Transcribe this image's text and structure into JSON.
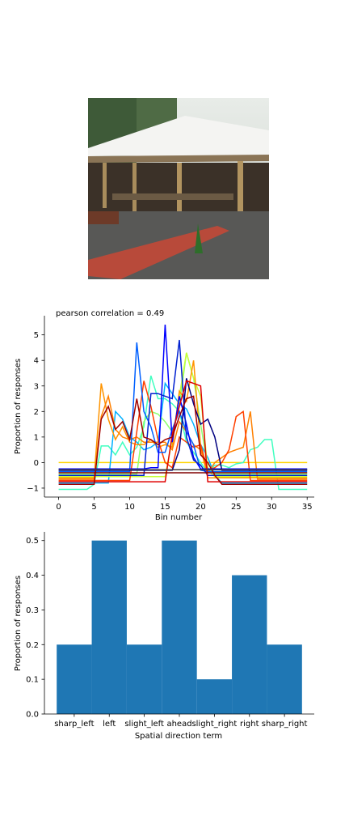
{
  "image": {
    "subject": "outdoor pavilion with picnic tables, brick path and small shrub"
  },
  "chart_data": [
    {
      "type": "line",
      "title": "pearson correlation = 0.49",
      "xlabel": "Bin number",
      "ylabel": "Proportion of responses",
      "xlim": [
        -2,
        36
      ],
      "ylim": [
        -1.35,
        5.75
      ],
      "xticks": [
        0,
        5,
        10,
        15,
        20,
        25,
        30,
        35
      ],
      "yticks": [
        -1,
        0,
        1,
        2,
        3,
        4,
        5
      ],
      "grid": false,
      "x": [
        0,
        1,
        2,
        3,
        4,
        5,
        6,
        7,
        8,
        9,
        10,
        11,
        12,
        13,
        14,
        15,
        16,
        17,
        18,
        19,
        20,
        21,
        22,
        23,
        24,
        25,
        26,
        27,
        28,
        29,
        30,
        31,
        32,
        33,
        34,
        35
      ],
      "series": [
        {
          "color": "#ffd400",
          "values": [
            0,
            0,
            0,
            0,
            0,
            0,
            0,
            0,
            0,
            0,
            0,
            0,
            0,
            0,
            0,
            0,
            0,
            0,
            0,
            0,
            0,
            0,
            0,
            0,
            0,
            0,
            0,
            0,
            0,
            0,
            0,
            0,
            0,
            0,
            0,
            0
          ]
        },
        {
          "color": "#40ffc0",
          "values": [
            -1.05,
            -1.05,
            -1.05,
            -1.05,
            -1.05,
            -0.85,
            0.65,
            0.65,
            0.3,
            0.8,
            0.3,
            0.6,
            1.4,
            3.4,
            2.5,
            2.5,
            2.3,
            2.0,
            0.8,
            0.4,
            0.0,
            -0.4,
            -0.1,
            -0.1,
            -0.2,
            -0.05,
            0.0,
            0.5,
            0.6,
            0.9,
            0.9,
            -1.05,
            -1.05,
            -1.05,
            -1.05,
            -1.05
          ]
        },
        {
          "color": "#00b0ff",
          "values": [
            -0.8,
            -0.8,
            -0.8,
            -0.8,
            -0.8,
            -0.8,
            -0.8,
            -0.8,
            2.0,
            1.7,
            1.0,
            0.8,
            0.5,
            0.6,
            0.8,
            3.1,
            2.7,
            2.3,
            2.1,
            1.5,
            0.7,
            0.2,
            -0.5,
            -0.8,
            -0.8,
            -0.8,
            -0.8,
            -0.8,
            -0.8,
            -0.8,
            -0.8,
            -0.8,
            -0.8,
            -0.8,
            -0.8,
            -0.8
          ]
        },
        {
          "color": "#8cff70",
          "values": [
            -0.45,
            -0.45,
            -0.45,
            -0.45,
            -0.45,
            -0.45,
            -0.45,
            -0.45,
            -0.45,
            -0.45,
            -0.45,
            -0.45,
            1.6,
            2.0,
            1.9,
            1.6,
            1.2,
            2.2,
            4.3,
            3.3,
            1.5,
            -0.2,
            -0.45,
            -0.45,
            -0.45,
            -0.45,
            -0.45,
            -0.45,
            -0.45,
            -0.45,
            -0.45,
            -0.45,
            -0.45,
            -0.45,
            -0.45,
            -0.45
          ]
        },
        {
          "color": "#c8ff38",
          "values": [
            -0.55,
            -0.55,
            -0.55,
            -0.55,
            -0.55,
            -0.55,
            -0.55,
            -0.55,
            -0.55,
            -0.55,
            -0.55,
            -0.55,
            -0.55,
            -0.55,
            -0.55,
            -0.55,
            0.9,
            2.6,
            4.3,
            3.3,
            2.6,
            -0.3,
            -0.55,
            -0.55,
            -0.55,
            -0.55,
            -0.55,
            -0.55,
            -0.55,
            -0.55,
            -0.55,
            -0.55,
            -0.55,
            -0.55,
            -0.55,
            -0.55
          ]
        },
        {
          "color": "#ff9400",
          "values": [
            -0.6,
            -0.6,
            -0.6,
            -0.6,
            -0.6,
            -0.6,
            3.1,
            1.7,
            0.9,
            1.4,
            0.8,
            0.7,
            0.7,
            0.9,
            0.6,
            0.7,
            0.6,
            2.8,
            2.4,
            4.0,
            0.6,
            -0.6,
            -0.6,
            -0.6,
            -0.6,
            -0.6,
            -0.6,
            -0.6,
            -0.6,
            -0.6,
            -0.6,
            -0.6,
            -0.6,
            -0.6,
            -0.6,
            -0.6
          ]
        },
        {
          "color": "#ff8000",
          "values": [
            -0.65,
            -0.65,
            -0.65,
            -0.65,
            -0.65,
            -0.65,
            1.8,
            2.6,
            1.3,
            1.0,
            0.9,
            1.0,
            0.8,
            0.8,
            0.8,
            0.8,
            0.5,
            1.6,
            1.2,
            0.7,
            0.5,
            -0.4,
            0.0,
            0.2,
            0.4,
            0.5,
            0.6,
            2.0,
            -0.65,
            -0.65,
            -0.65,
            -0.65,
            -0.65,
            -0.65,
            -0.65,
            -0.65
          ]
        },
        {
          "color": "#ff4000",
          "values": [
            -0.7,
            -0.7,
            -0.7,
            -0.7,
            -0.7,
            -0.7,
            -0.7,
            -0.7,
            -0.7,
            -0.7,
            -0.7,
            1.2,
            3.2,
            2.2,
            0.9,
            0.0,
            -0.2,
            1.0,
            0.8,
            0.6,
            0.7,
            -0.3,
            -0.2,
            0.0,
            0.5,
            1.8,
            2.0,
            -0.7,
            -0.7,
            -0.7,
            -0.7,
            -0.7,
            -0.7,
            -0.7,
            -0.7,
            -0.7
          ]
        },
        {
          "color": "#0060ff",
          "values": [
            -0.35,
            -0.35,
            -0.35,
            -0.35,
            -0.35,
            -0.35,
            -0.35,
            -0.35,
            -0.35,
            -0.35,
            -0.35,
            4.7,
            2.0,
            1.4,
            0.4,
            0.4,
            1.3,
            2.0,
            1.2,
            0.7,
            -0.3,
            -0.35,
            -0.35,
            -0.35,
            -0.35,
            -0.35,
            -0.35,
            -0.35,
            -0.35,
            -0.35,
            -0.35,
            -0.35,
            -0.35,
            -0.35,
            -0.35,
            -0.35
          ]
        },
        {
          "color": "#0000ff",
          "values": [
            -0.25,
            -0.25,
            -0.25,
            -0.25,
            -0.25,
            -0.25,
            -0.25,
            -0.25,
            -0.25,
            -0.25,
            -0.25,
            -0.25,
            -0.25,
            -0.2,
            -0.2,
            5.4,
            0.8,
            2.6,
            1.5,
            0.2,
            -0.25,
            -0.25,
            -0.25,
            -0.25,
            -0.25,
            -0.25,
            -0.25,
            -0.25,
            -0.25,
            -0.25,
            -0.25,
            -0.25,
            -0.25,
            -0.25,
            -0.25,
            -0.25
          ]
        },
        {
          "color": "#0020d0",
          "values": [
            -0.5,
            -0.5,
            -0.5,
            -0.5,
            -0.5,
            -0.5,
            -0.5,
            -0.5,
            -0.5,
            -0.5,
            -0.5,
            -0.5,
            -0.5,
            2.7,
            2.7,
            2.6,
            2.5,
            4.8,
            1.0,
            0.1,
            -0.1,
            -0.5,
            -0.5,
            -0.5,
            -0.5,
            -0.5,
            -0.5,
            -0.5,
            -0.5,
            -0.5,
            -0.5,
            -0.5,
            -0.5,
            -0.5,
            -0.5,
            -0.5
          ]
        },
        {
          "color": "#000080",
          "values": [
            -0.3,
            -0.3,
            -0.3,
            -0.3,
            -0.3,
            -0.3,
            -0.3,
            -0.3,
            -0.3,
            -0.3,
            -0.3,
            -0.3,
            -0.3,
            -0.3,
            -0.3,
            -0.3,
            -0.3,
            0.5,
            3.3,
            2.3,
            1.5,
            1.7,
            1.0,
            -0.3,
            -0.3,
            -0.3,
            -0.3,
            -0.3,
            -0.3,
            -0.3,
            -0.3,
            -0.3,
            -0.3,
            -0.3,
            -0.3,
            -0.3
          ]
        },
        {
          "color": "#e00000",
          "values": [
            -0.75,
            -0.75,
            -0.75,
            -0.75,
            -0.75,
            -0.75,
            -0.75,
            -0.75,
            -0.75,
            -0.75,
            -0.75,
            -0.75,
            -0.75,
            -0.75,
            -0.75,
            -0.75,
            1.1,
            2.2,
            3.2,
            3.1,
            3.0,
            -0.75,
            -0.75,
            -0.75,
            -0.75,
            -0.75,
            -0.75,
            -0.75,
            -0.75,
            -0.75,
            -0.75,
            -0.75,
            -0.75,
            -0.75,
            -0.75,
            -0.75
          ]
        },
        {
          "color": "#a00000",
          "values": [
            -0.85,
            -0.85,
            -0.85,
            -0.85,
            -0.85,
            -0.85,
            1.7,
            2.2,
            1.3,
            1.6,
            0.9,
            2.5,
            1.0,
            0.9,
            0.7,
            0.9,
            1.0,
            1.8,
            2.5,
            2.6,
            0.3,
            0.0,
            -0.5,
            -0.85,
            -0.85,
            -0.85,
            -0.85,
            -0.85,
            -0.85,
            -0.85,
            -0.85,
            -0.85,
            -0.85,
            -0.85,
            -0.85,
            -0.85
          ]
        },
        {
          "color": "#800000",
          "values": [
            -0.4,
            -0.4,
            -0.4,
            -0.4,
            -0.4,
            -0.4,
            -0.4,
            -0.4,
            -0.4,
            -0.4,
            -0.4,
            -0.4,
            -0.4,
            -0.4,
            -0.4,
            -0.4,
            -0.4,
            -0.4,
            -0.4,
            -0.4,
            -0.4,
            -0.4,
            -0.4,
            -0.4,
            -0.4,
            -0.4,
            -0.4,
            -0.4,
            -0.4,
            -0.4,
            -0.4,
            -0.4,
            -0.4,
            -0.4,
            -0.4,
            -0.4
          ]
        },
        {
          "color": "#404040",
          "values": [
            -0.28,
            -0.28,
            -0.28,
            -0.28,
            -0.28,
            -0.28,
            -0.28,
            -0.28,
            -0.28,
            -0.28,
            -0.28,
            -0.28,
            -0.28,
            -0.28,
            -0.28,
            -0.28,
            -0.28,
            -0.28,
            -0.28,
            -0.28,
            -0.28,
            -0.28,
            -0.28,
            -0.28,
            -0.28,
            -0.28,
            -0.28,
            -0.28,
            -0.28,
            -0.28,
            -0.28,
            -0.28,
            -0.28,
            -0.28,
            -0.28,
            -0.28
          ]
        }
      ]
    },
    {
      "type": "bar",
      "xlabel": "Spatial direction term",
      "ylabel": "Proportion of responses",
      "categories": [
        "sharp_left",
        "left",
        "slight_left",
        "ahead",
        "slight_right",
        "right",
        "sharp_right"
      ],
      "values": [
        0.2,
        0.5,
        0.2,
        0.5,
        0.1,
        0.4,
        0.2
      ],
      "ylim": [
        0,
        0.525
      ],
      "yticks": [
        0.0,
        0.1,
        0.2,
        0.3,
        0.4,
        0.5
      ],
      "color": "#1f77b4",
      "grid": false
    }
  ]
}
